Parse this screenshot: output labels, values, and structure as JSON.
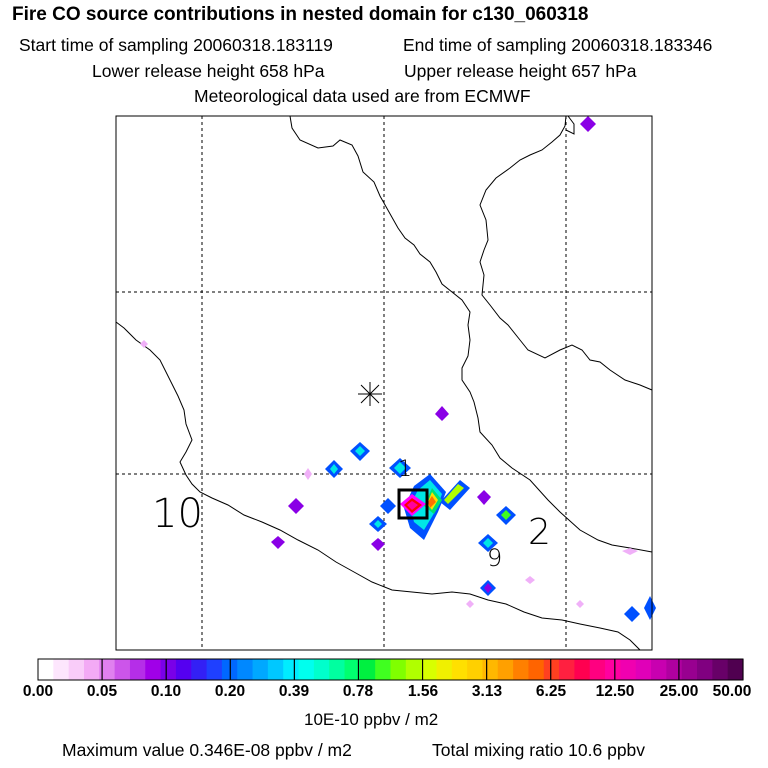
{
  "header": {
    "title": "Fire CO source contributions in nested domain for c130_060318",
    "start_sampling": "Start time of sampling 20060318.183119",
    "end_sampling": "End time of sampling 20060318.183346",
    "lower_release": "Lower release height  658 hPa",
    "upper_release": "Upper release height  657 hPa",
    "met_data": "Meteorological data used are from ECMWF"
  },
  "map": {
    "labels": [
      "10",
      "1",
      "9",
      "2"
    ],
    "cell_colors": {
      "magenta": "#ff00ff",
      "violet": "#8a00e6",
      "blue": "#0050ff",
      "cyan": "#00e6e6",
      "green": "#00e070",
      "yellow": "#ffe000",
      "orange": "#ff7000",
      "red": "#ff0000",
      "pink": "#ff00a0",
      "lilac": "#f0b0f8"
    }
  },
  "colorbar": {
    "tick_labels": [
      "0.00",
      "0.05",
      "0.10",
      "0.20",
      "0.39",
      "0.78",
      "1.56",
      "3.13",
      "6.25",
      "12.50",
      "25.00",
      "50.00"
    ],
    "colors": [
      "#ffffff",
      "#fde6fd",
      "#f9ccf9",
      "#f3aaf5",
      "#e080ef",
      "#cc55ea",
      "#b52ee8",
      "#a000e8",
      "#7a00e8",
      "#5500f0",
      "#3320f5",
      "#1f40ff",
      "#0068ff",
      "#0088ff",
      "#00a8ff",
      "#00c8ff",
      "#00ecff",
      "#00ffee",
      "#00ffcc",
      "#00ffa0",
      "#00ff70",
      "#00f040",
      "#40ff20",
      "#80ff00",
      "#b0ff00",
      "#d8ff00",
      "#f0f000",
      "#ffe000",
      "#ffd000",
      "#ffb800",
      "#ffa000",
      "#ff8000",
      "#ff6400",
      "#ff4020",
      "#ff2040",
      "#ff0050",
      "#ff0080",
      "#ff00a0",
      "#f000b0",
      "#e000b8",
      "#c800b0",
      "#b000a0",
      "#980090",
      "#800080",
      "#680068",
      "#500050"
    ]
  },
  "footer": {
    "unit": "10E-10 ppbv / m2",
    "maximum": "Maximum value  0.346E-08 ppbv / m2",
    "total": "Total mixing ratio       10.6 ppbv"
  },
  "chart_data": {
    "type": "heatmap",
    "title": "Fire CO source contributions in nested domain for c130_060318",
    "colorbar_label": "10E-10 ppbv / m2",
    "colorbar_ticks": [
      0.0,
      0.05,
      0.1,
      0.2,
      0.39,
      0.78,
      1.56,
      3.13,
      6.25,
      12.5,
      25.0,
      50.0
    ],
    "maximum_value": "0.346E-08 ppbv / m2",
    "total_mixing_ratio": "10.6 ppbv",
    "grid": true
  }
}
